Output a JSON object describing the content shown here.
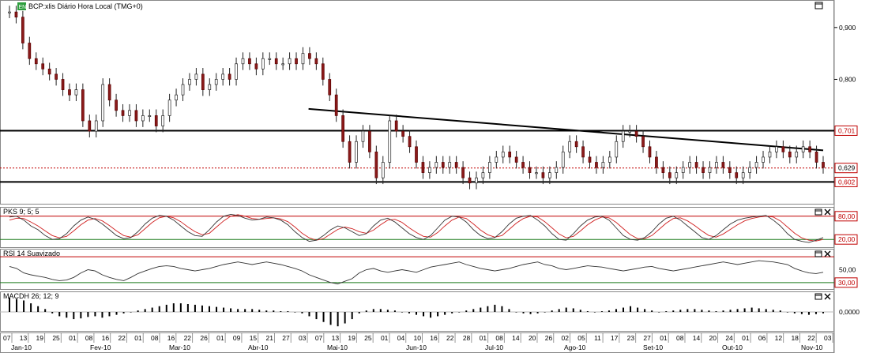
{
  "chart_data": {
    "type": "candlestick",
    "title": "BCP:xlis Diário Hora Local (TMG+0)",
    "badge": "EN",
    "main": {
      "ylim": [
        0.56,
        0.95
      ],
      "yticks": [
        "0,900",
        "0,800"
      ],
      "ytick_values": [
        0.9,
        0.8
      ],
      "hlines": [
        0.701,
        0.602
      ],
      "hline_labels": [
        "0,701",
        "0,602"
      ],
      "last_price": 0.629,
      "last_price_label": "0,629",
      "trendline": {
        "from": {
          "date": "2010-04-28",
          "value": 0.743
        },
        "to": {
          "date": "2010-11-05",
          "value": 0.663
        }
      },
      "close_series": [
        0.93,
        0.92,
        0.87,
        0.84,
        0.83,
        0.82,
        0.81,
        0.8,
        0.78,
        0.77,
        0.78,
        0.72,
        0.7,
        0.72,
        0.79,
        0.76,
        0.74,
        0.73,
        0.74,
        0.72,
        0.73,
        0.73,
        0.71,
        0.73,
        0.76,
        0.77,
        0.79,
        0.8,
        0.81,
        0.78,
        0.79,
        0.8,
        0.81,
        0.8,
        0.83,
        0.84,
        0.83,
        0.82,
        0.84,
        0.84,
        0.83,
        0.83,
        0.84,
        0.83,
        0.85,
        0.84,
        0.83,
        0.8,
        0.77,
        0.73,
        0.68,
        0.64,
        0.68,
        0.7,
        0.66,
        0.61,
        0.64,
        0.72,
        0.7,
        0.69,
        0.67,
        0.64,
        0.62,
        0.63,
        0.64,
        0.63,
        0.64,
        0.63,
        0.61,
        0.6,
        0.61,
        0.62,
        0.64,
        0.65,
        0.66,
        0.65,
        0.64,
        0.63,
        0.62,
        0.62,
        0.61,
        0.62,
        0.63,
        0.66,
        0.68,
        0.67,
        0.65,
        0.64,
        0.63,
        0.64,
        0.65,
        0.68,
        0.7,
        0.7,
        0.69,
        0.67,
        0.65,
        0.63,
        0.62,
        0.61,
        0.62,
        0.63,
        0.64,
        0.63,
        0.62,
        0.63,
        0.64,
        0.63,
        0.62,
        0.61,
        0.62,
        0.63,
        0.64,
        0.65,
        0.66,
        0.67,
        0.66,
        0.65,
        0.66,
        0.67,
        0.66,
        0.64,
        0.63
      ],
      "date_range": [
        "2010-01-07",
        "2010-11-05"
      ]
    },
    "stochastic": {
      "name": "PKS 9; 5; 5",
      "ylim": [
        0,
        100
      ],
      "levels": [
        80,
        20
      ],
      "level_labels": [
        "80,00",
        "20,00"
      ],
      "k": [
        78,
        80,
        70,
        55,
        45,
        30,
        20,
        22,
        35,
        55,
        70,
        78,
        72,
        60,
        45,
        30,
        22,
        25,
        40,
        60,
        75,
        82,
        80,
        70,
        55,
        40,
        30,
        28,
        45,
        65,
        80,
        85,
        82,
        75,
        70,
        72,
        78,
        76,
        70,
        58,
        40,
        25,
        15,
        18,
        30,
        45,
        55,
        50,
        40,
        30,
        35,
        55,
        70,
        75,
        65,
        50,
        35,
        25,
        20,
        30,
        50,
        70,
        80,
        78,
        65,
        45,
        30,
        22,
        25,
        40,
        60,
        75,
        80,
        82,
        70,
        55,
        35,
        20,
        18,
        35,
        55,
        70,
        78,
        80,
        70,
        50,
        30,
        20,
        18,
        25,
        40,
        60,
        75,
        80,
        70,
        55,
        40,
        25,
        20,
        30,
        45,
        60,
        70,
        75,
        78,
        80,
        82,
        70,
        55,
        35,
        20,
        15,
        12,
        18,
        25
      ],
      "d": [
        70,
        75,
        74,
        65,
        55,
        42,
        30,
        24,
        28,
        42,
        58,
        70,
        74,
        68,
        56,
        42,
        30,
        26,
        32,
        48,
        64,
        76,
        80,
        76,
        66,
        52,
        40,
        32,
        36,
        52,
        68,
        80,
        84,
        80,
        74,
        72,
        74,
        76,
        73,
        66,
        52,
        36,
        24,
        18,
        22,
        34,
        46,
        52,
        48,
        40,
        36,
        44,
        58,
        70,
        72,
        64,
        50,
        38,
        28,
        26,
        38,
        55,
        70,
        78,
        74,
        60,
        44,
        32,
        26,
        30,
        46,
        62,
        74,
        80,
        78,
        66,
        50,
        34,
        24,
        28,
        42,
        58,
        70,
        78,
        76,
        64,
        48,
        32,
        22,
        22,
        30,
        46,
        62,
        74,
        76,
        68,
        56,
        42,
        30,
        26,
        34,
        46,
        58,
        68,
        74,
        78,
        80,
        78,
        68,
        52,
        36,
        24,
        18,
        16,
        20
      ]
    },
    "rsi": {
      "name": "RSI 14 Suavizado",
      "ylim": [
        20,
        80
      ],
      "levels": [
        70,
        30
      ],
      "ticks": [
        "50,00"
      ],
      "tick_values": [
        50
      ],
      "level_labels": [
        "30,00"
      ],
      "values": [
        55,
        52,
        45,
        42,
        40,
        38,
        35,
        33,
        34,
        38,
        45,
        50,
        48,
        42,
        38,
        35,
        33,
        38,
        44,
        48,
        52,
        55,
        56,
        55,
        52,
        50,
        48,
        50,
        52,
        55,
        58,
        60,
        62,
        60,
        58,
        60,
        62,
        60,
        58,
        55,
        52,
        48,
        42,
        38,
        34,
        30,
        28,
        32,
        36,
        45,
        50,
        52,
        48,
        46,
        48,
        50,
        48,
        46,
        50,
        54,
        56,
        58,
        60,
        62,
        58,
        55,
        52,
        50,
        48,
        50,
        52,
        55,
        58,
        60,
        62,
        58,
        56,
        52,
        50,
        52,
        54,
        56,
        55,
        54,
        52,
        50,
        48,
        50,
        52,
        54,
        55,
        52,
        50,
        48,
        50,
        52,
        54,
        56,
        58,
        60,
        62,
        60,
        58,
        60,
        62,
        64,
        63,
        62,
        60,
        58,
        52,
        48,
        45,
        44,
        46
      ]
    },
    "macd": {
      "name": "MACDH 26; 12; 9",
      "tick_values": [
        0
      ],
      "ticks": [
        "0,0000"
      ],
      "values": [
        0.02,
        0.018,
        0.016,
        0.012,
        0.008,
        0.004,
        -0.002,
        -0.006,
        -0.008,
        -0.01,
        -0.009,
        -0.007,
        -0.006,
        -0.008,
        -0.006,
        -0.004,
        -0.002,
        0.0,
        0.002,
        0.004,
        0.006,
        0.008,
        0.01,
        0.012,
        0.012,
        0.011,
        0.01,
        0.009,
        0.008,
        0.007,
        0.006,
        0.005,
        0.004,
        0.004,
        0.004,
        0.003,
        0.002,
        0.002,
        0.001,
        0.001,
        0.0,
        -0.002,
        -0.006,
        -0.01,
        -0.014,
        -0.018,
        -0.02,
        -0.016,
        -0.01,
        -0.002,
        0.002,
        0.004,
        0.004,
        0.003,
        0.002,
        0.0,
        -0.002,
        -0.004,
        -0.006,
        -0.008,
        -0.006,
        -0.004,
        -0.002,
        0.0,
        0.002,
        0.004,
        0.006,
        0.008,
        0.01,
        0.008,
        0.004,
        0.0,
        -0.002,
        -0.003,
        -0.002,
        0.0,
        0.002,
        0.004,
        0.006,
        0.005,
        0.003,
        0.001,
        0.0,
        0.001,
        0.002,
        0.004,
        0.006,
        0.008,
        0.006,
        0.004,
        0.002,
        0.0,
        0.001,
        0.002,
        0.003,
        0.004,
        0.004,
        0.003,
        0.002,
        0.001,
        0.002,
        0.003,
        0.004,
        0.005,
        0.006,
        0.005,
        0.004,
        0.003,
        0.002,
        0.0,
        -0.002,
        -0.003,
        -0.004,
        -0.003,
        -0.002
      ]
    },
    "x_day_labels": [
      "07",
      "13",
      "19",
      "25",
      "01",
      "08",
      "16",
      "22",
      "01",
      "08",
      "16",
      "22",
      "26",
      "01",
      "09",
      "15",
      "21",
      "27",
      "03",
      "07",
      "13",
      "19",
      "25",
      "01",
      "04",
      "10",
      "16",
      "22",
      "28",
      "01",
      "08",
      "14",
      "20",
      "26",
      "02",
      "05",
      "11",
      "17",
      "23",
      "27",
      "01",
      "08",
      "14",
      "20",
      "24",
      "01",
      "06",
      "12",
      "18",
      "22",
      "03"
    ],
    "x_month_labels": [
      "Jan-10",
      "Fev-10",
      "Mar-10",
      "Abr-10",
      "Mai-10",
      "Jun-10",
      "Jul-10",
      "Ago-10",
      "Set-10",
      "Out-10",
      "Nov-10"
    ]
  },
  "panel_icons": [
    "close-icon",
    "maximize-icon"
  ]
}
